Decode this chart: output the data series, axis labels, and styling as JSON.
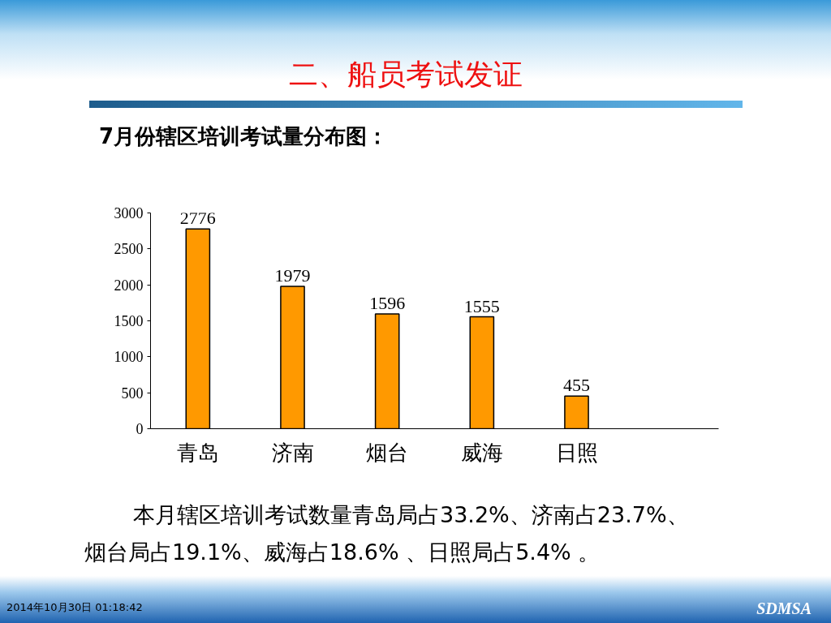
{
  "chart_data": {
    "type": "bar",
    "title": "二、船员考试发证",
    "subtitle": "7月份辖区培训考试量分布图：",
    "categories": [
      "青岛",
      "济南",
      "烟台",
      "威海",
      "日照",
      null
    ],
    "values": [
      2776,
      1979,
      1596,
      1555,
      455,
      null
    ],
    "color": "#ff9900",
    "ylim": [
      0,
      3000
    ],
    "yticks": [
      0,
      500,
      1000,
      1500,
      2000,
      2500,
      3000
    ],
    "data_labels": true,
    "annotations": [
      "本月辖区培训考试数量青岛局占33.2%、济南占23.7%、烟台局占19.1%、威海占18.6% 、日照局占5.4% 。",
      "2014年10月30日  01:18:42",
      "SDMSA"
    ]
  }
}
